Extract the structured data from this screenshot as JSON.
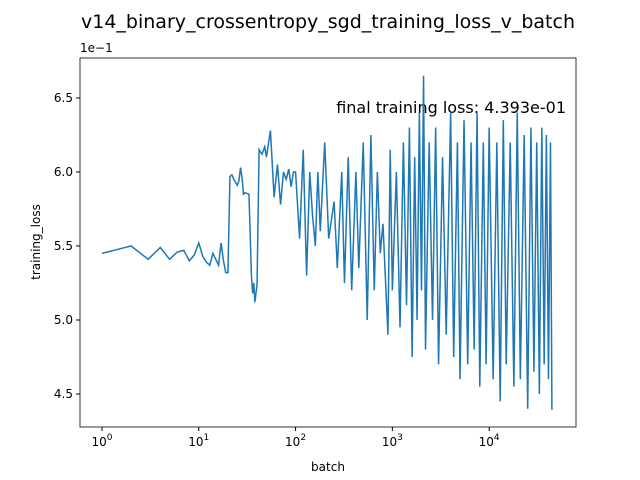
{
  "chart_data": {
    "type": "line",
    "title": "v14_binary_crossentropy_sgd_training_loss_v_batch",
    "xlabel": "batch",
    "ylabel": "training_loss",
    "y_offset_label": "1e−1",
    "annotation": "final training loss: 4.393e-01",
    "xscale": "log",
    "xlim": [
      0.593,
      78900
    ],
    "ylim": [
      0.4277,
      0.677
    ],
    "xticks": [
      {
        "value": 1,
        "label": "10^0"
      },
      {
        "value": 10,
        "label": "10^1"
      },
      {
        "value": 100,
        "label": "10^2"
      },
      {
        "value": 1000,
        "label": "10^3"
      },
      {
        "value": 10000,
        "label": "10^4"
      }
    ],
    "yticks": [
      {
        "value": 0.45,
        "label": "4.5"
      },
      {
        "value": 0.5,
        "label": "5.0"
      },
      {
        "value": 0.55,
        "label": "5.5"
      },
      {
        "value": 0.6,
        "label": "6.0"
      },
      {
        "value": 0.65,
        "label": "6.5"
      }
    ],
    "color": "#1f77b4",
    "x": [
      1,
      2,
      3,
      4,
      5,
      6,
      7,
      8,
      9,
      10,
      11,
      12,
      13,
      14,
      15,
      16,
      17,
      18,
      19,
      20,
      21,
      22,
      23,
      24,
      25,
      26,
      27,
      28,
      29,
      30,
      33,
      35,
      36,
      37,
      38,
      40,
      42,
      45,
      48,
      50,
      55,
      60,
      65,
      70,
      75,
      80,
      85,
      90,
      95,
      100,
      110,
      120,
      130,
      140,
      150,
      160,
      170,
      180,
      200,
      220,
      250,
      270,
      300,
      320,
      350,
      380,
      420,
      450,
      500,
      550,
      600,
      650,
      700,
      750,
      800,
      900,
      950,
      1000,
      1100,
      1200,
      1300,
      1400,
      1500,
      1600,
      1700,
      1800,
      1900,
      2000,
      2100,
      2200,
      2400,
      2600,
      2800,
      3000,
      3300,
      3600,
      4000,
      4300,
      4700,
      5000,
      5500,
      6000,
      6500,
      7000,
      7500,
      8000,
      8700,
      9300,
      10000,
      11000,
      12000,
      13000,
      14000,
      15000,
      16500,
      18000,
      19500,
      21000,
      23000,
      25000,
      27000,
      29000,
      31000,
      33000,
      35000,
      37000,
      39000,
      41000,
      43000,
      44500
    ],
    "values": [
      0.545,
      0.55,
      0.541,
      0.549,
      0.541,
      0.546,
      0.547,
      0.54,
      0.544,
      0.552,
      0.543,
      0.539,
      0.537,
      0.545,
      0.541,
      0.537,
      0.552,
      0.54,
      0.532,
      0.532,
      0.597,
      0.598,
      0.595,
      0.593,
      0.591,
      0.594,
      0.603,
      0.596,
      0.585,
      0.586,
      0.585,
      0.53,
      0.518,
      0.525,
      0.512,
      0.524,
      0.615,
      0.612,
      0.617,
      0.61,
      0.628,
      0.583,
      0.605,
      0.578,
      0.6,
      0.595,
      0.602,
      0.59,
      0.6,
      0.6,
      0.555,
      0.615,
      0.53,
      0.6,
      0.57,
      0.55,
      0.6,
      0.56,
      0.62,
      0.555,
      0.58,
      0.535,
      0.6,
      0.525,
      0.61,
      0.52,
      0.6,
      0.535,
      0.62,
      0.5,
      0.625,
      0.52,
      0.6,
      0.545,
      0.565,
      0.49,
      0.615,
      0.52,
      0.6,
      0.495,
      0.62,
      0.51,
      0.63,
      0.475,
      0.61,
      0.5,
      0.64,
      0.52,
      0.665,
      0.48,
      0.62,
      0.5,
      0.63,
      0.47,
      0.61,
      0.49,
      0.64,
      0.475,
      0.62,
      0.46,
      0.635,
      0.47,
      0.62,
      0.48,
      0.64,
      0.455,
      0.62,
      0.47,
      0.63,
      0.46,
      0.62,
      0.445,
      0.635,
      0.47,
      0.62,
      0.455,
      0.64,
      0.46,
      0.625,
      0.44,
      0.63,
      0.465,
      0.62,
      0.45,
      0.63,
      0.47,
      0.625,
      0.46,
      0.62,
      0.4393
    ]
  }
}
